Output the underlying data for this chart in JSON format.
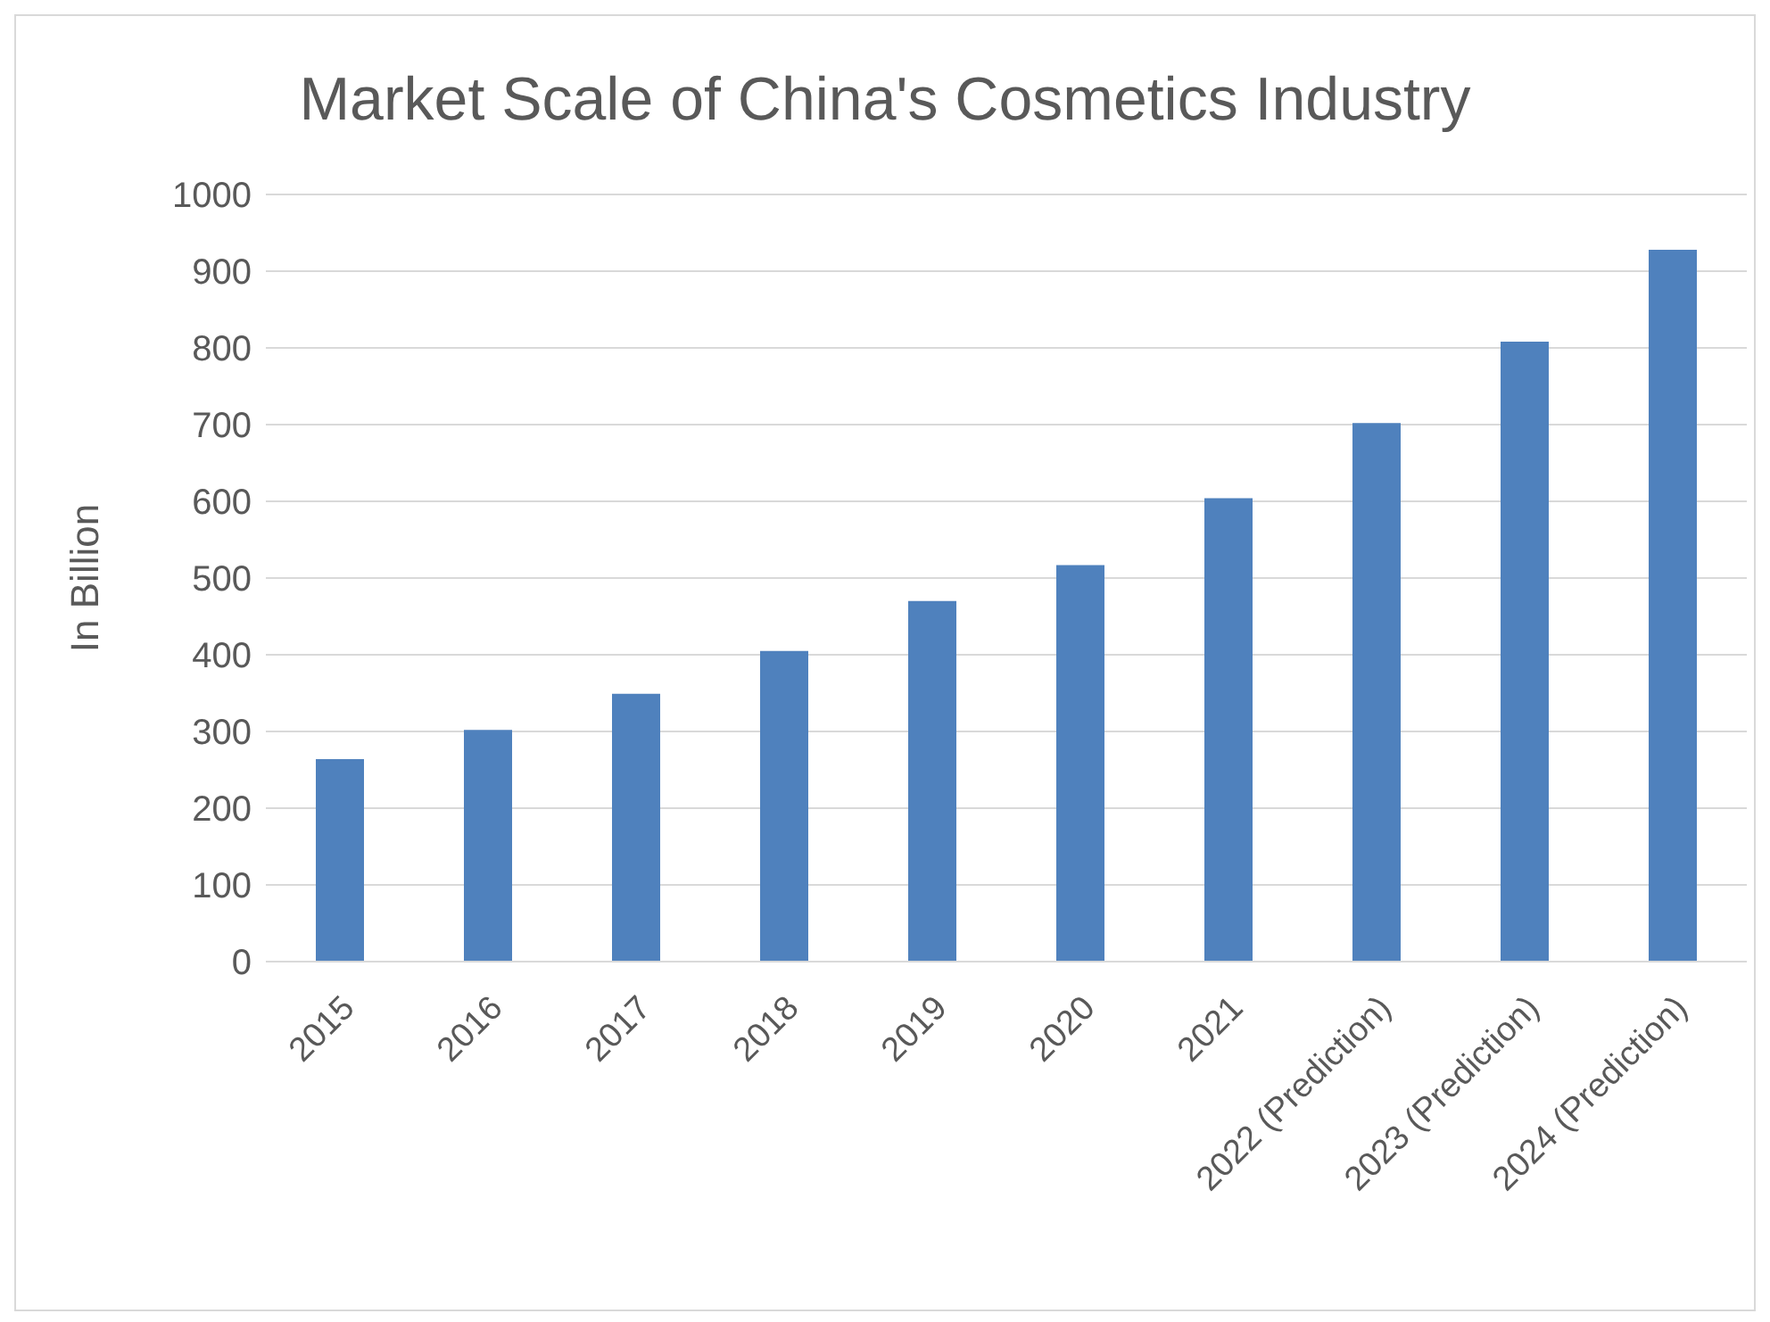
{
  "chart_data": {
    "type": "bar",
    "title": "Market Scale of China's Cosmetics Industry",
    "ylabel": "In Billion",
    "categories": [
      "2015",
      "2016",
      "2017",
      "2018",
      "2019",
      "2020",
      "2021",
      "2022 (Prediction)",
      "2023 (Prediction)",
      "2024 (Prediction)"
    ],
    "values": [
      264,
      302,
      349,
      405,
      470,
      517,
      604,
      702,
      808,
      928
    ],
    "color": "#4f81bd",
    "ylim": [
      0,
      1000
    ],
    "yticks": [
      0,
      100,
      200,
      300,
      400,
      500,
      600,
      700,
      800,
      900,
      1000
    ],
    "grid": "y",
    "legend": false
  }
}
